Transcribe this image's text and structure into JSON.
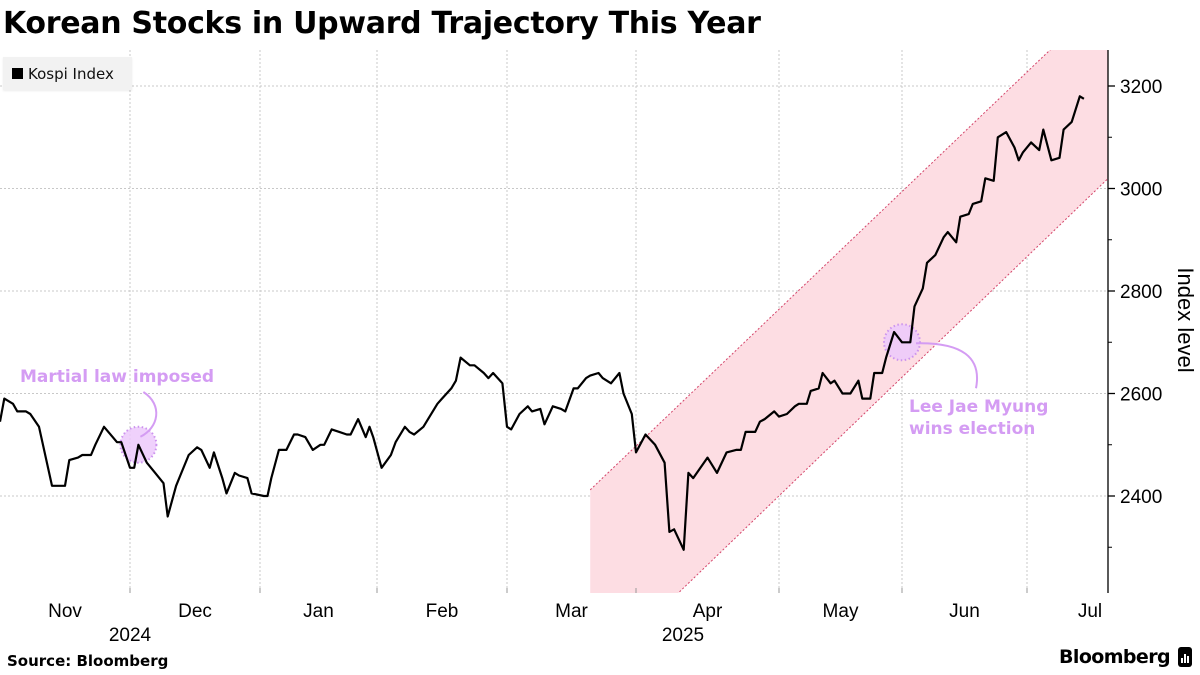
{
  "title": "Korean Stocks in Upward Trajectory This Year",
  "legend": {
    "label": "Kospi Index",
    "color": "#000000"
  },
  "source": "Source: Bloomberg",
  "brand": "Bloomberg",
  "chart_data": {
    "type": "line",
    "title": "Korean Stocks in Upward Trajectory This Year",
    "ylabel": "Index level",
    "xlabel": "",
    "xlim": [
      "2024-11-01",
      "2025-07-21"
    ],
    "ylim": [
      2211,
      3270
    ],
    "y_ticks": [
      2400,
      2600,
      2800,
      3000,
      3200
    ],
    "y_axis_side": "right",
    "x_ticks": [
      {
        "label": "Nov",
        "month": "2024-11"
      },
      {
        "label": "Dec",
        "month": "2024-12"
      },
      {
        "label": "Jan",
        "month": "2025-01"
      },
      {
        "label": "Feb",
        "month": "2025-02"
      },
      {
        "label": "Mar",
        "month": "2025-03"
      },
      {
        "label": "Apr",
        "month": "2025-04"
      },
      {
        "label": "May",
        "month": "2025-05"
      },
      {
        "label": "Jun",
        "month": "2025-06"
      },
      {
        "label": "Jul",
        "month": "2025-07"
      }
    ],
    "year_labels": [
      "2024",
      "2025"
    ],
    "grid": true,
    "legend_position": "top-left",
    "series": [
      {
        "name": "Kospi Index",
        "color": "#000000",
        "points": [
          [
            "2024-11-01",
            2545
          ],
          [
            "2024-11-02",
            2590
          ],
          [
            "2024-11-04",
            2580
          ],
          [
            "2024-11-05",
            2565
          ],
          [
            "2024-11-07",
            2565
          ],
          [
            "2024-11-08",
            2560
          ],
          [
            "2024-11-10",
            2535
          ],
          [
            "2024-11-13",
            2420
          ],
          [
            "2024-11-14",
            2420
          ],
          [
            "2024-11-16",
            2420
          ],
          [
            "2024-11-17",
            2470
          ],
          [
            "2024-11-19",
            2475
          ],
          [
            "2024-11-20",
            2480
          ],
          [
            "2024-11-22",
            2480
          ],
          [
            "2024-11-23",
            2500
          ],
          [
            "2024-11-25",
            2535
          ],
          [
            "2024-11-27",
            2515
          ],
          [
            "2024-11-28",
            2505
          ],
          [
            "2024-11-29",
            2505
          ],
          [
            "2024-12-01",
            2455
          ],
          [
            "2024-12-02",
            2455
          ],
          [
            "2024-12-03",
            2500
          ],
          [
            "2024-12-05",
            2465
          ],
          [
            "2024-12-07",
            2445
          ],
          [
            "2024-12-09",
            2425
          ],
          [
            "2024-12-10",
            2360
          ],
          [
            "2024-12-12",
            2420
          ],
          [
            "2024-12-13",
            2440
          ],
          [
            "2024-12-15",
            2480
          ],
          [
            "2024-12-17",
            2495
          ],
          [
            "2024-12-18",
            2490
          ],
          [
            "2024-12-20",
            2455
          ],
          [
            "2024-12-21",
            2485
          ],
          [
            "2024-12-23",
            2435
          ],
          [
            "2024-12-24",
            2405
          ],
          [
            "2024-12-26",
            2445
          ],
          [
            "2024-12-27",
            2440
          ],
          [
            "2024-12-29",
            2435
          ],
          [
            "2024-12-30",
            2405
          ],
          [
            "2025-01-02",
            2400
          ],
          [
            "2025-01-03",
            2400
          ],
          [
            "2025-01-04",
            2435
          ],
          [
            "2025-01-06",
            2490
          ],
          [
            "2025-01-08",
            2490
          ],
          [
            "2025-01-10",
            2520
          ],
          [
            "2025-01-11",
            2520
          ],
          [
            "2025-01-13",
            2515
          ],
          [
            "2025-01-15",
            2490
          ],
          [
            "2025-01-17",
            2500
          ],
          [
            "2025-01-18",
            2500
          ],
          [
            "2025-01-20",
            2530
          ],
          [
            "2025-01-22",
            2525
          ],
          [
            "2025-01-24",
            2520
          ],
          [
            "2025-01-25",
            2520
          ],
          [
            "2025-01-27",
            2550
          ],
          [
            "2025-01-29",
            2515
          ],
          [
            "2025-01-30",
            2535
          ],
          [
            "2025-01-31",
            2515
          ],
          [
            "2025-02-02",
            2455
          ],
          [
            "2025-02-04",
            2480
          ],
          [
            "2025-02-05",
            2505
          ],
          [
            "2025-02-07",
            2535
          ],
          [
            "2025-02-08",
            2525
          ],
          [
            "2025-02-09",
            2520
          ],
          [
            "2025-02-11",
            2535
          ],
          [
            "2025-02-12",
            2550
          ],
          [
            "2025-02-14",
            2580
          ],
          [
            "2025-02-15",
            2590
          ],
          [
            "2025-02-17",
            2610
          ],
          [
            "2025-02-18",
            2625
          ],
          [
            "2025-02-19",
            2670
          ],
          [
            "2025-02-21",
            2655
          ],
          [
            "2025-02-22",
            2655
          ],
          [
            "2025-02-24",
            2640
          ],
          [
            "2025-02-25",
            2630
          ],
          [
            "2025-02-26",
            2640
          ],
          [
            "2025-02-28",
            2620
          ],
          [
            "2025-03-01",
            2535
          ],
          [
            "2025-03-02",
            2530
          ],
          [
            "2025-03-04",
            2560
          ],
          [
            "2025-03-06",
            2575
          ],
          [
            "2025-03-07",
            2565
          ],
          [
            "2025-03-09",
            2570
          ],
          [
            "2025-03-10",
            2540
          ],
          [
            "2025-03-12",
            2575
          ],
          [
            "2025-03-14",
            2570
          ],
          [
            "2025-03-15",
            2565
          ],
          [
            "2025-03-17",
            2610
          ],
          [
            "2025-03-18",
            2610
          ],
          [
            "2025-03-20",
            2630
          ],
          [
            "2025-03-21",
            2635
          ],
          [
            "2025-03-23",
            2640
          ],
          [
            "2025-03-24",
            2630
          ],
          [
            "2025-03-26",
            2620
          ],
          [
            "2025-03-28",
            2640
          ],
          [
            "2025-03-29",
            2600
          ],
          [
            "2025-03-31",
            2560
          ],
          [
            "2025-04-01",
            2485
          ],
          [
            "2025-04-03",
            2520
          ],
          [
            "2025-04-05",
            2500
          ],
          [
            "2025-04-07",
            2465
          ],
          [
            "2025-04-08",
            2330
          ],
          [
            "2025-04-09",
            2335
          ],
          [
            "2025-04-11",
            2295
          ],
          [
            "2025-04-12",
            2445
          ],
          [
            "2025-04-13",
            2435
          ],
          [
            "2025-04-16",
            2475
          ],
          [
            "2025-04-18",
            2445
          ],
          [
            "2025-04-20",
            2485
          ],
          [
            "2025-04-22",
            2490
          ],
          [
            "2025-04-23",
            2490
          ],
          [
            "2025-04-24",
            2525
          ],
          [
            "2025-04-26",
            2525
          ],
          [
            "2025-04-27",
            2545
          ],
          [
            "2025-04-28",
            2550
          ],
          [
            "2025-04-30",
            2565
          ],
          [
            "2025-05-01",
            2555
          ],
          [
            "2025-05-03",
            2560
          ],
          [
            "2025-05-05",
            2575
          ],
          [
            "2025-05-06",
            2580
          ],
          [
            "2025-05-08",
            2580
          ],
          [
            "2025-05-09",
            2605
          ],
          [
            "2025-05-11",
            2610
          ],
          [
            "2025-05-12",
            2640
          ],
          [
            "2025-05-14",
            2620
          ],
          [
            "2025-05-15",
            2625
          ],
          [
            "2025-05-17",
            2600
          ],
          [
            "2025-05-19",
            2600
          ],
          [
            "2025-05-21",
            2625
          ],
          [
            "2025-05-22",
            2590
          ],
          [
            "2025-05-24",
            2590
          ],
          [
            "2025-05-25",
            2640
          ],
          [
            "2025-05-27",
            2640
          ],
          [
            "2025-05-28",
            2670
          ],
          [
            "2025-05-30",
            2720
          ],
          [
            "2025-06-01",
            2700
          ],
          [
            "2025-06-03",
            2700
          ],
          [
            "2025-06-04",
            2770
          ],
          [
            "2025-06-06",
            2805
          ],
          [
            "2025-06-07",
            2855
          ],
          [
            "2025-06-09",
            2870
          ],
          [
            "2025-06-11",
            2905
          ],
          [
            "2025-06-12",
            2915
          ],
          [
            "2025-06-14",
            2895
          ],
          [
            "2025-06-15",
            2945
          ],
          [
            "2025-06-17",
            2950
          ],
          [
            "2025-06-18",
            2970
          ],
          [
            "2025-06-20",
            2975
          ],
          [
            "2025-06-21",
            3020
          ],
          [
            "2025-06-23",
            3015
          ],
          [
            "2025-06-24",
            3100
          ],
          [
            "2025-06-26",
            3110
          ],
          [
            "2025-06-28",
            3080
          ],
          [
            "2025-06-29",
            3055
          ],
          [
            "2025-06-30",
            3070
          ],
          [
            "2025-07-02",
            3090
          ],
          [
            "2025-07-04",
            3075
          ],
          [
            "2025-07-05",
            3115
          ],
          [
            "2025-07-07",
            3055
          ],
          [
            "2025-07-09",
            3060
          ],
          [
            "2025-07-10",
            3115
          ],
          [
            "2025-07-12",
            3130
          ],
          [
            "2025-07-14",
            3180
          ],
          [
            "2025-07-15",
            3175
          ]
        ]
      }
    ],
    "trend_channel": {
      "fill_color": "#fddde3",
      "edge_color": "#d4456a",
      "upper": [
        [
          "2025-03-21",
          2412
        ],
        [
          "2025-07-21",
          3379
        ]
      ],
      "lower": [
        [
          "2025-03-21",
          2045
        ],
        [
          "2025-07-21",
          3020
        ]
      ]
    },
    "annotations": [
      {
        "text": "Martial law imposed",
        "date": "2024-12-03",
        "value": 2500,
        "color": "#d49cf3"
      },
      {
        "text": "Lee Jae Myung wins election",
        "lines": [
          "Lee Jae Myung",
          "wins election"
        ],
        "date": "2025-06-01",
        "value": 2700,
        "color": "#d49cf3"
      }
    ]
  }
}
